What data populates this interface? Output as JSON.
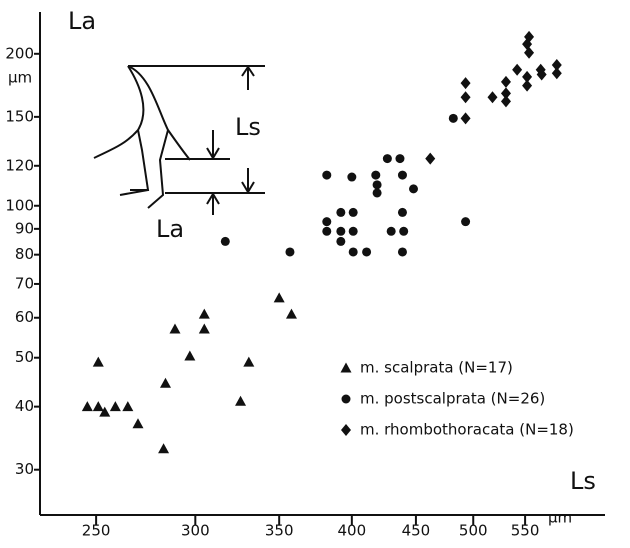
{
  "chart_data": {
    "type": "scatter",
    "y_label": "La",
    "x_label": "Ls",
    "y_unit": "μm",
    "x_unit": "μm",
    "annotations": [
      "Ls",
      "La"
    ],
    "xlim": [
      225.5,
      637
    ],
    "ylim": [
      24.4,
      242
    ],
    "xlog": true,
    "ylog": true,
    "xticks": [
      250,
      300,
      350,
      400,
      450,
      500,
      550
    ],
    "yticks": [
      30,
      40,
      50,
      60,
      70,
      80,
      90,
      100,
      120,
      150,
      200
    ],
    "series": [
      {
        "name": "m. scalprata (N=17)",
        "marker": "triangle",
        "color": "#111111",
        "x": [
          246,
          251,
          251,
          254,
          259,
          265,
          270,
          283,
          284,
          289,
          297,
          305,
          305,
          326,
          331,
          350,
          358
        ],
        "values": [
          40,
          49,
          40,
          39,
          40,
          40,
          37,
          33,
          44.5,
          57,
          50.4,
          61,
          57,
          41,
          49,
          65.7,
          61
        ]
      },
      {
        "name": "m. postscalprata (N=26)",
        "marker": "circle",
        "color": "#111111",
        "x": [
          317,
          357,
          382,
          400,
          382,
          382,
          392,
          392,
          392,
          401,
          401,
          401,
          411,
          418,
          419,
          419,
          427,
          437,
          430,
          440,
          439,
          439,
          439,
          448,
          482,
          493
        ],
        "values": [
          85,
          81,
          115,
          114,
          93,
          89,
          97,
          89,
          85,
          97,
          89,
          81,
          81,
          115,
          110,
          106,
          124,
          124,
          89,
          89,
          115,
          97,
          81,
          108,
          149,
          93
        ]
      },
      {
        "name": "m. rhombothoracata (N=18)",
        "marker": "diamond",
        "color": "#111111",
        "x": [
          462,
          493,
          493,
          493,
          518,
          531,
          531,
          531,
          542,
          552,
          552,
          554,
          552,
          554,
          566,
          567,
          583,
          583
        ],
        "values": [
          124,
          175,
          164,
          149,
          164,
          176,
          167,
          161,
          186,
          180,
          173,
          216,
          209,
          201,
          186,
          182,
          190,
          183
        ]
      }
    ]
  }
}
